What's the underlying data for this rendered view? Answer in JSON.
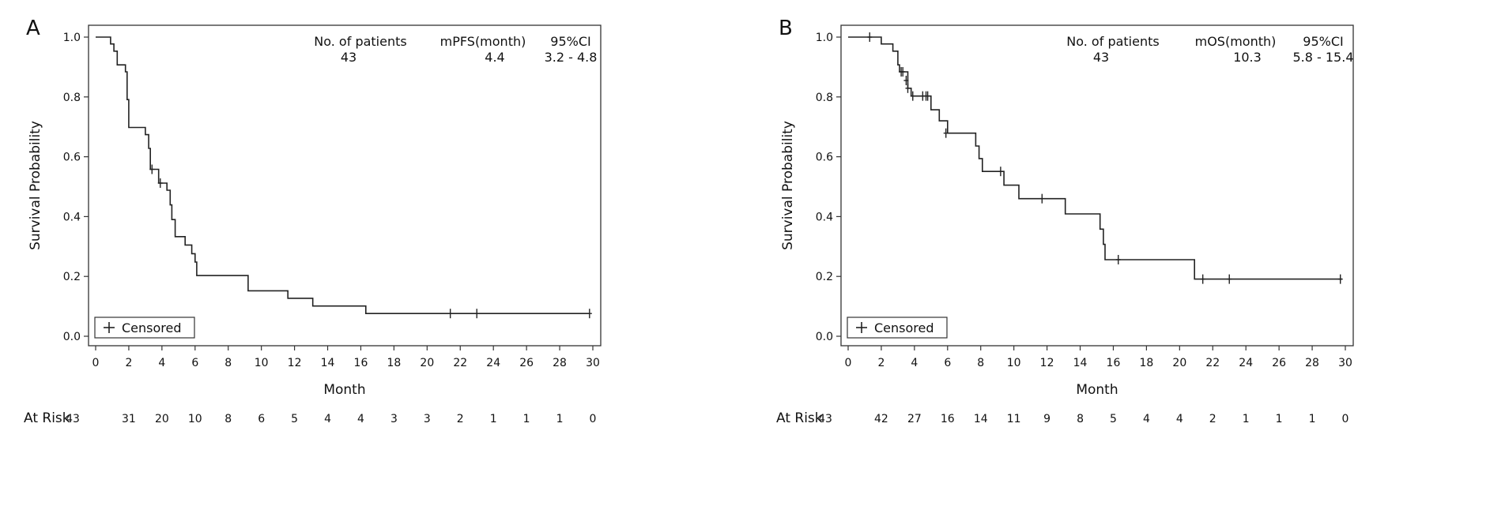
{
  "chart_data": [
    {
      "type": "line",
      "chart_kind": "kaplan-meier",
      "panel_label": "A",
      "xlabel": "Month",
      "ylabel": "Survival Probability",
      "xlim": [
        0,
        30
      ],
      "ylim": [
        0,
        1
      ],
      "xticks": [
        0,
        2,
        4,
        6,
        8,
        10,
        12,
        14,
        16,
        18,
        20,
        22,
        24,
        26,
        28,
        30
      ],
      "yticks": [
        "0.0",
        "0.2",
        "0.4",
        "0.6",
        "0.8",
        "1.0"
      ],
      "grid": false,
      "legend": {
        "label": "Censored",
        "position": "bottom-left"
      },
      "stats": {
        "headers": [
          "No. of patients",
          "mPFS(month)",
          "95%CI"
        ],
        "values": [
          "43",
          "4.4",
          "3.2 - 4.8"
        ]
      },
      "survival_steps": [
        [
          0,
          1.0
        ],
        [
          0.9,
          0.977
        ],
        [
          1.1,
          0.953
        ],
        [
          1.3,
          0.907
        ],
        [
          1.8,
          0.884
        ],
        [
          1.9,
          0.791
        ],
        [
          2.0,
          0.698
        ],
        [
          3.0,
          0.674
        ],
        [
          3.2,
          0.628
        ],
        [
          3.3,
          0.558
        ],
        [
          3.8,
          0.512
        ],
        [
          4.3,
          0.488
        ],
        [
          4.5,
          0.439
        ],
        [
          4.6,
          0.39
        ],
        [
          4.8,
          0.333
        ],
        [
          5.4,
          0.305
        ],
        [
          5.8,
          0.276
        ],
        [
          6.0,
          0.248
        ],
        [
          6.1,
          0.203
        ],
        [
          9.2,
          0.152
        ],
        [
          11.6,
          0.127
        ],
        [
          13.1,
          0.101
        ],
        [
          16.3,
          0.076
        ],
        [
          29.8,
          0.076
        ]
      ],
      "censored": [
        [
          3.4,
          0.558
        ],
        [
          3.9,
          0.512
        ],
        [
          21.4,
          0.076
        ],
        [
          23.0,
          0.076
        ],
        [
          29.8,
          0.076
        ]
      ],
      "at_risk": {
        "label": "At Risk",
        "times": [
          0,
          2,
          4,
          6,
          8,
          10,
          12,
          14,
          16,
          18,
          20,
          22,
          24,
          26,
          28,
          30
        ],
        "values": [
          "43",
          "31",
          "20",
          "10",
          "8",
          "6",
          "5",
          "4",
          "4",
          "3",
          "3",
          "2",
          "1",
          "1",
          "1",
          "0"
        ]
      }
    },
    {
      "type": "line",
      "chart_kind": "kaplan-meier",
      "panel_label": "B",
      "xlabel": "Month",
      "ylabel": "Survival Probability",
      "xlim": [
        0,
        30
      ],
      "ylim": [
        0,
        1
      ],
      "xticks": [
        0,
        2,
        4,
        6,
        8,
        10,
        12,
        14,
        16,
        18,
        20,
        22,
        24,
        26,
        28,
        30
      ],
      "yticks": [
        "0.0",
        "0.2",
        "0.4",
        "0.6",
        "0.8",
        "1.0"
      ],
      "grid": false,
      "legend": {
        "label": "Censored",
        "position": "bottom-left"
      },
      "stats": {
        "headers": [
          "No. of patients",
          "mOS(month)",
          "95%CI"
        ],
        "values": [
          "43",
          "10.3",
          "5.8 - 15.4"
        ]
      },
      "survival_steps": [
        [
          0,
          1.0
        ],
        [
          2.0,
          0.977
        ],
        [
          2.7,
          0.953
        ],
        [
          3.0,
          0.907
        ],
        [
          3.1,
          0.884
        ],
        [
          3.6,
          0.829
        ],
        [
          3.8,
          0.803
        ],
        [
          5.0,
          0.757
        ],
        [
          5.5,
          0.72
        ],
        [
          6.0,
          0.679
        ],
        [
          7.7,
          0.636
        ],
        [
          7.9,
          0.594
        ],
        [
          8.1,
          0.551
        ],
        [
          9.4,
          0.505
        ],
        [
          10.3,
          0.46
        ],
        [
          13.1,
          0.409
        ],
        [
          15.2,
          0.358
        ],
        [
          15.4,
          0.307
        ],
        [
          15.5,
          0.256
        ],
        [
          20.9,
          0.191
        ],
        [
          29.8,
          0.191
        ]
      ],
      "censored": [
        [
          1.3,
          1.0
        ],
        [
          3.2,
          0.884
        ],
        [
          3.3,
          0.884
        ],
        [
          3.5,
          0.855
        ],
        [
          3.6,
          0.829
        ],
        [
          3.9,
          0.803
        ],
        [
          4.5,
          0.803
        ],
        [
          4.7,
          0.803
        ],
        [
          4.8,
          0.803
        ],
        [
          5.9,
          0.679
        ],
        [
          9.2,
          0.551
        ],
        [
          11.7,
          0.46
        ],
        [
          16.3,
          0.256
        ],
        [
          21.4,
          0.191
        ],
        [
          23.0,
          0.191
        ],
        [
          29.7,
          0.191
        ]
      ],
      "at_risk": {
        "label": "At Risk",
        "times": [
          0,
          2,
          4,
          6,
          8,
          10,
          12,
          14,
          16,
          18,
          20,
          22,
          24,
          26,
          28,
          30
        ],
        "values": [
          "43",
          "42",
          "27",
          "16",
          "14",
          "11",
          "9",
          "8",
          "5",
          "4",
          "4",
          "2",
          "1",
          "1",
          "1",
          "0"
        ]
      }
    }
  ]
}
